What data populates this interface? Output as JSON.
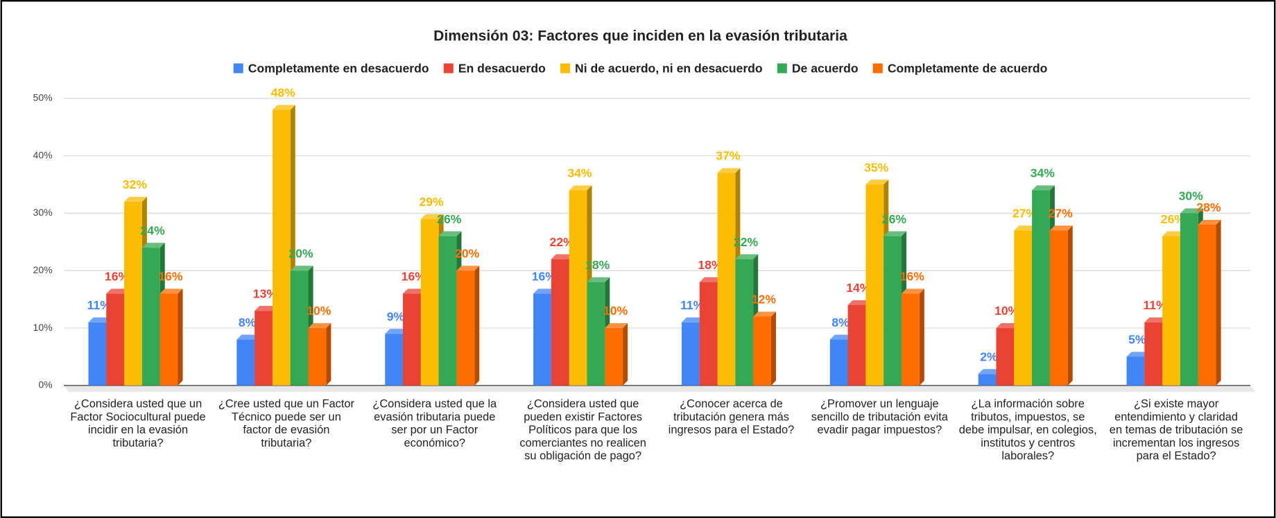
{
  "chart_data": {
    "type": "bar3d",
    "title": "Dimensión 03: Factores que inciden en la evasión tributaria",
    "categories": [
      "¿Considera usted que un Factor Sociocultural puede incidir en la evasión tributaria?",
      "¿Cree usted que un Factor Técnico puede ser un factor de evasión tributaria?",
      "¿Considera usted que la evasión tributaria puede ser por un Factor económico?",
      "¿Considera usted que pueden existir Factores Políticos para que los comerciantes no realicen su obligación de pago?",
      "¿Conocer acerca de tributación genera más ingresos para el Estado?",
      "¿Promover un lenguaje sencillo de tributación evita evadir pagar impuestos?",
      "¿La información sobre tributos, impuestos, se debe impulsar, en colegios, institutos y centros laborales?",
      "¿Si existe mayor entendimiento y claridad en temas de tributación se incrementan los ingresos para el Estado?"
    ],
    "series": [
      {
        "name": "Completamente en desacuerdo",
        "color": "#4285f4",
        "values": [
          11,
          8,
          9,
          16,
          11,
          8,
          2,
          5
        ],
        "value_labels": [
          "11%",
          "8%",
          "9%",
          "16%",
          "11%",
          "8%",
          "2%",
          "5%"
        ]
      },
      {
        "name": "En desacuerdo",
        "color": "#ea4335",
        "values": [
          16,
          13,
          16,
          22,
          18,
          14,
          10,
          11
        ],
        "value_labels": [
          "16%",
          "13%",
          "16%",
          "22%",
          "18%",
          "14%",
          "10%",
          "11%"
        ]
      },
      {
        "name": "Ni de acuerdo, ni en desacuerdo",
        "color": "#fbbc04",
        "values": [
          32,
          48,
          29,
          34,
          37,
          35,
          27,
          26
        ],
        "value_labels": [
          "32%",
          "48%",
          "29%",
          "34%",
          "37%",
          "35%",
          "27%",
          "26%"
        ]
      },
      {
        "name": "De acuerdo",
        "color": "#34a853",
        "values": [
          24,
          20,
          26,
          18,
          22,
          26,
          34,
          30
        ],
        "value_labels": [
          "24%",
          "20%",
          "26%",
          "18%",
          "22%",
          "26%",
          "34%",
          "30%"
        ]
      },
      {
        "name": "Completamente de acuerdo",
        "color": "#ff6d01",
        "values": [
          16,
          10,
          20,
          10,
          12,
          16,
          27,
          28
        ],
        "value_labels": [
          "16%",
          "10%",
          "20%",
          "10%",
          "12%",
          "16%",
          "27%",
          "28%"
        ]
      }
    ],
    "ylim": [
      0,
      50
    ],
    "yticks": [
      {
        "value": 0,
        "label": "0%"
      },
      {
        "value": 10,
        "label": "10%"
      },
      {
        "value": 20,
        "label": "20%"
      },
      {
        "value": 30,
        "label": "30%"
      },
      {
        "value": 40,
        "label": "40%"
      },
      {
        "value": 50,
        "label": "50%"
      }
    ],
    "grid": true,
    "legend": "top"
  }
}
